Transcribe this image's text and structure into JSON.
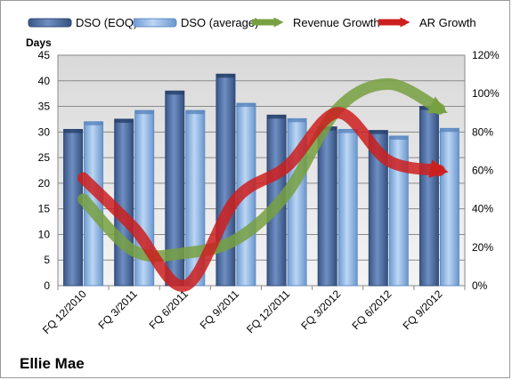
{
  "chart_data": {
    "type": "bar",
    "title": "",
    "company": "Ellie Mae",
    "ylabel": "Days",
    "ylim": [
      0,
      45
    ],
    "yticks": [
      0,
      5,
      10,
      15,
      20,
      25,
      30,
      35,
      40,
      45
    ],
    "y2lim": [
      0,
      1.2
    ],
    "y2ticks": [
      "0%",
      "20%",
      "40%",
      "60%",
      "80%",
      "100%",
      "120%"
    ],
    "categories": [
      "FQ 12/2010",
      "FQ 3/2011",
      "FQ 6/2011",
      "FQ 9/2011",
      "FQ 12/2011",
      "FQ 3/2012",
      "FQ 6/2012",
      "FQ 9/2012"
    ],
    "series": [
      {
        "name": "DSO (EOQ)",
        "kind": "bar",
        "axis": "left",
        "color": "#4f6d9e",
        "values": [
          30.5,
          32.5,
          38,
          41.3,
          33.3,
          31,
          30.3,
          35
        ]
      },
      {
        "name": "DSO (average)",
        "kind": "bar",
        "axis": "left",
        "color": "#8fb3e0",
        "values": [
          32,
          34.2,
          34.2,
          35.6,
          32.6,
          30.5,
          29.2,
          30.7
        ]
      },
      {
        "name": "Revenue Growth",
        "kind": "arrow-line",
        "axis": "right",
        "color": "#77a041",
        "values": [
          0.45,
          0.18,
          0.17,
          0.24,
          0.48,
          0.92,
          1.05,
          0.92
        ]
      },
      {
        "name": "AR Growth",
        "kind": "arrow-line",
        "axis": "right",
        "color": "#cc1f1f",
        "values": [
          0.56,
          0.3,
          0.0,
          0.45,
          0.62,
          0.9,
          0.65,
          0.6
        ]
      }
    ],
    "legend_position": "top",
    "grid": true
  }
}
